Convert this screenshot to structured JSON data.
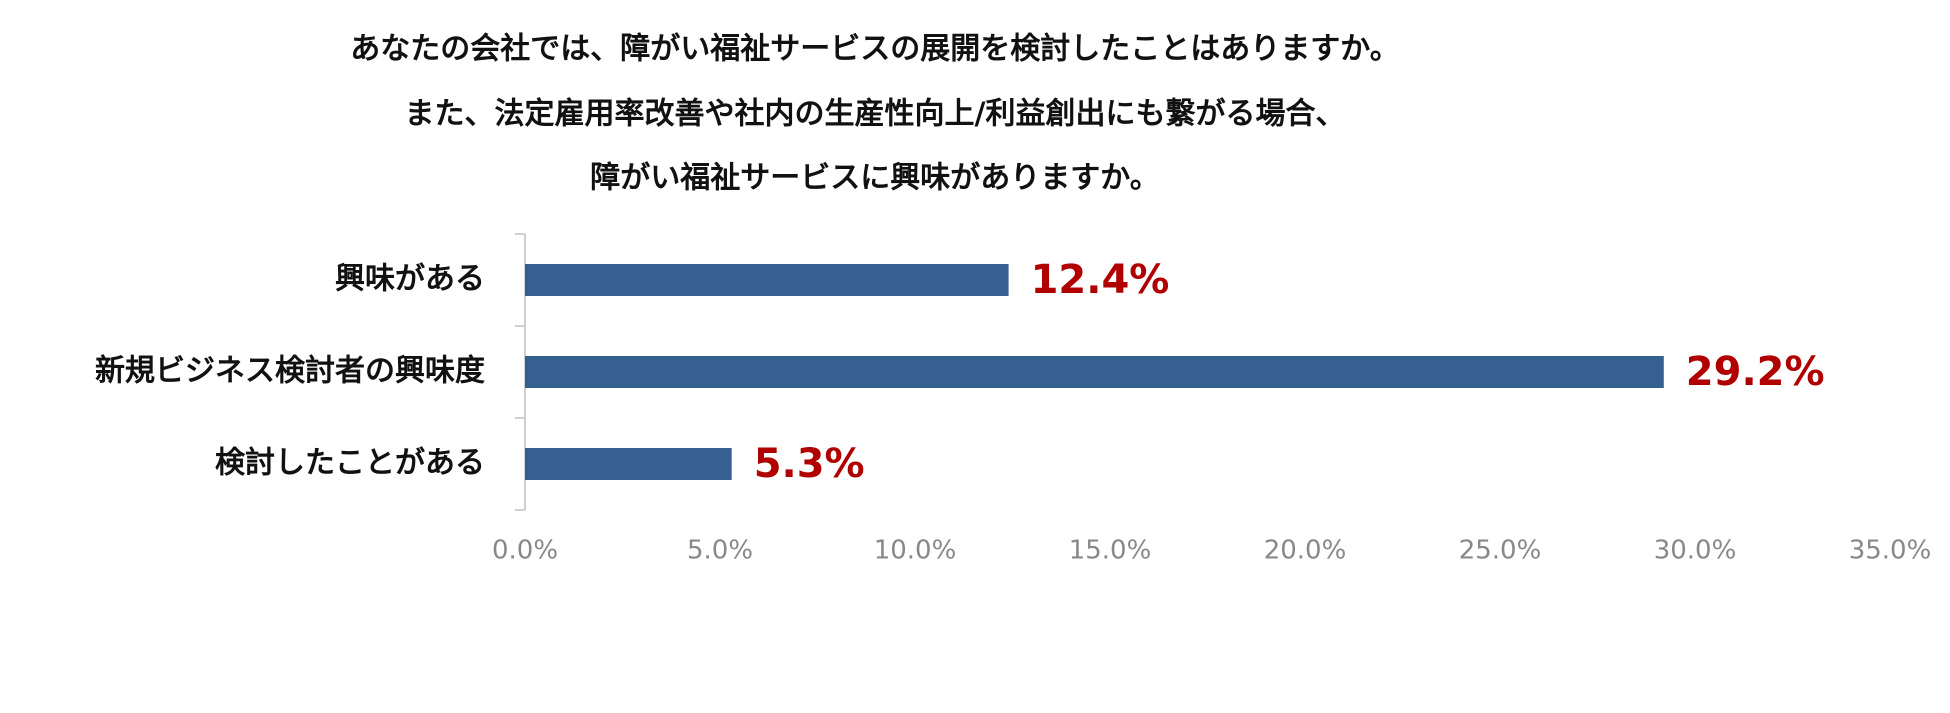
{
  "chart_data": {
    "type": "hbar",
    "title": [
      "あなたの会社では、障がい福祉サービスの展開を検討したことはありますか。",
      "また、法定雇用率改善や社内の生産性向上/利益創出にも繋がる場合、",
      "障がい福祉サービスに興味がありますか。"
    ],
    "categories": [
      "興味がある",
      "新規ビジネス検討者の興味度",
      "検討したことがある"
    ],
    "values": [
      12.4,
      29.2,
      5.3
    ],
    "value_labels": [
      "12.4%",
      "29.2%",
      "5.3%"
    ],
    "color": "#366092",
    "label_color": "#b00000",
    "xlim": [
      0,
      35
    ],
    "xticks": [
      {
        "value": 0,
        "label": "0.0%"
      },
      {
        "value": 5,
        "label": "5.0%"
      },
      {
        "value": 10,
        "label": "10.0%"
      },
      {
        "value": 15,
        "label": "15.0%"
      },
      {
        "value": 20,
        "label": "20.0%"
      },
      {
        "value": 25,
        "label": "25.0%"
      },
      {
        "value": 30,
        "label": "30.0%"
      },
      {
        "value": 35,
        "label": "35.0%"
      }
    ],
    "grid": false
  }
}
